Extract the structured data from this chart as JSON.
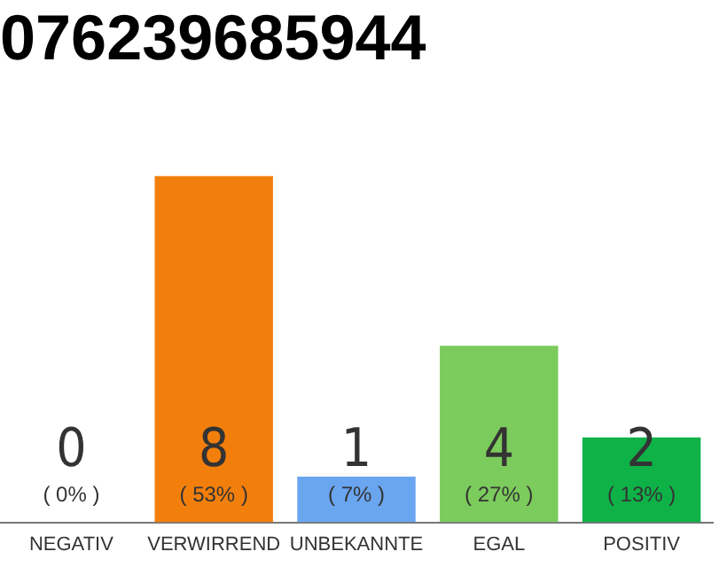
{
  "chart_data": {
    "type": "bar",
    "title": "076239685944",
    "categories": [
      "NEGATIV",
      "VERWIRREND",
      "UNBEKANNTE",
      "EGAL",
      "POSITIV"
    ],
    "values": [
      0,
      53,
      7,
      27,
      13
    ],
    "colors": [
      "#d0d0d0",
      "#f27f0c",
      "#6aa5f0",
      "#7ccb5d",
      "#0fb247"
    ],
    "value_labels": [
      "( 0% )",
      "( 53% )",
      "( 7% )",
      "( 27% )",
      "( 13% )"
    ],
    "annotations": [
      "0",
      "8",
      "1",
      "4",
      "2"
    ],
    "tick_labels": "x",
    "grid": false,
    "legend": false
  }
}
